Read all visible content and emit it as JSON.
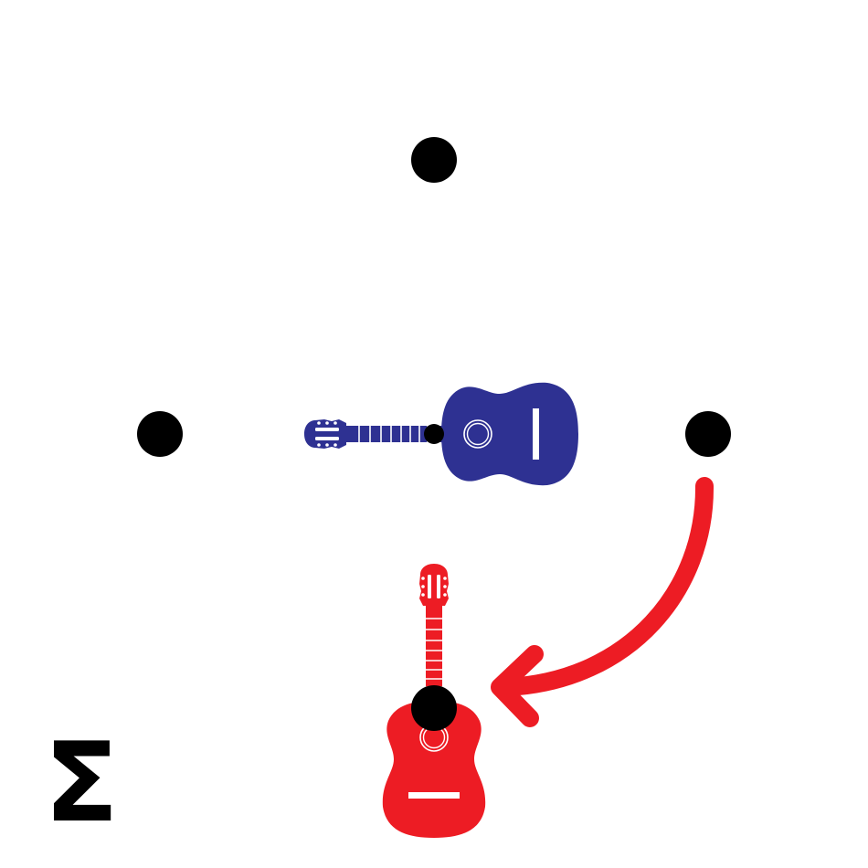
{
  "symbol": {
    "text": "Σ"
  },
  "colors": {
    "background": "#ffffff",
    "dot": "#000000",
    "guitar_original": "#2E3192",
    "guitar_transformed": "#ED1C24",
    "arrow": "#ED1C24",
    "symbol": "#000000"
  },
  "icons": {
    "original": "guitar-icon",
    "transformed": "guitar-icon",
    "arrow": "curved-arrow-icon"
  },
  "transformation": {
    "rotation_degrees": 90,
    "direction": "clockwise"
  }
}
